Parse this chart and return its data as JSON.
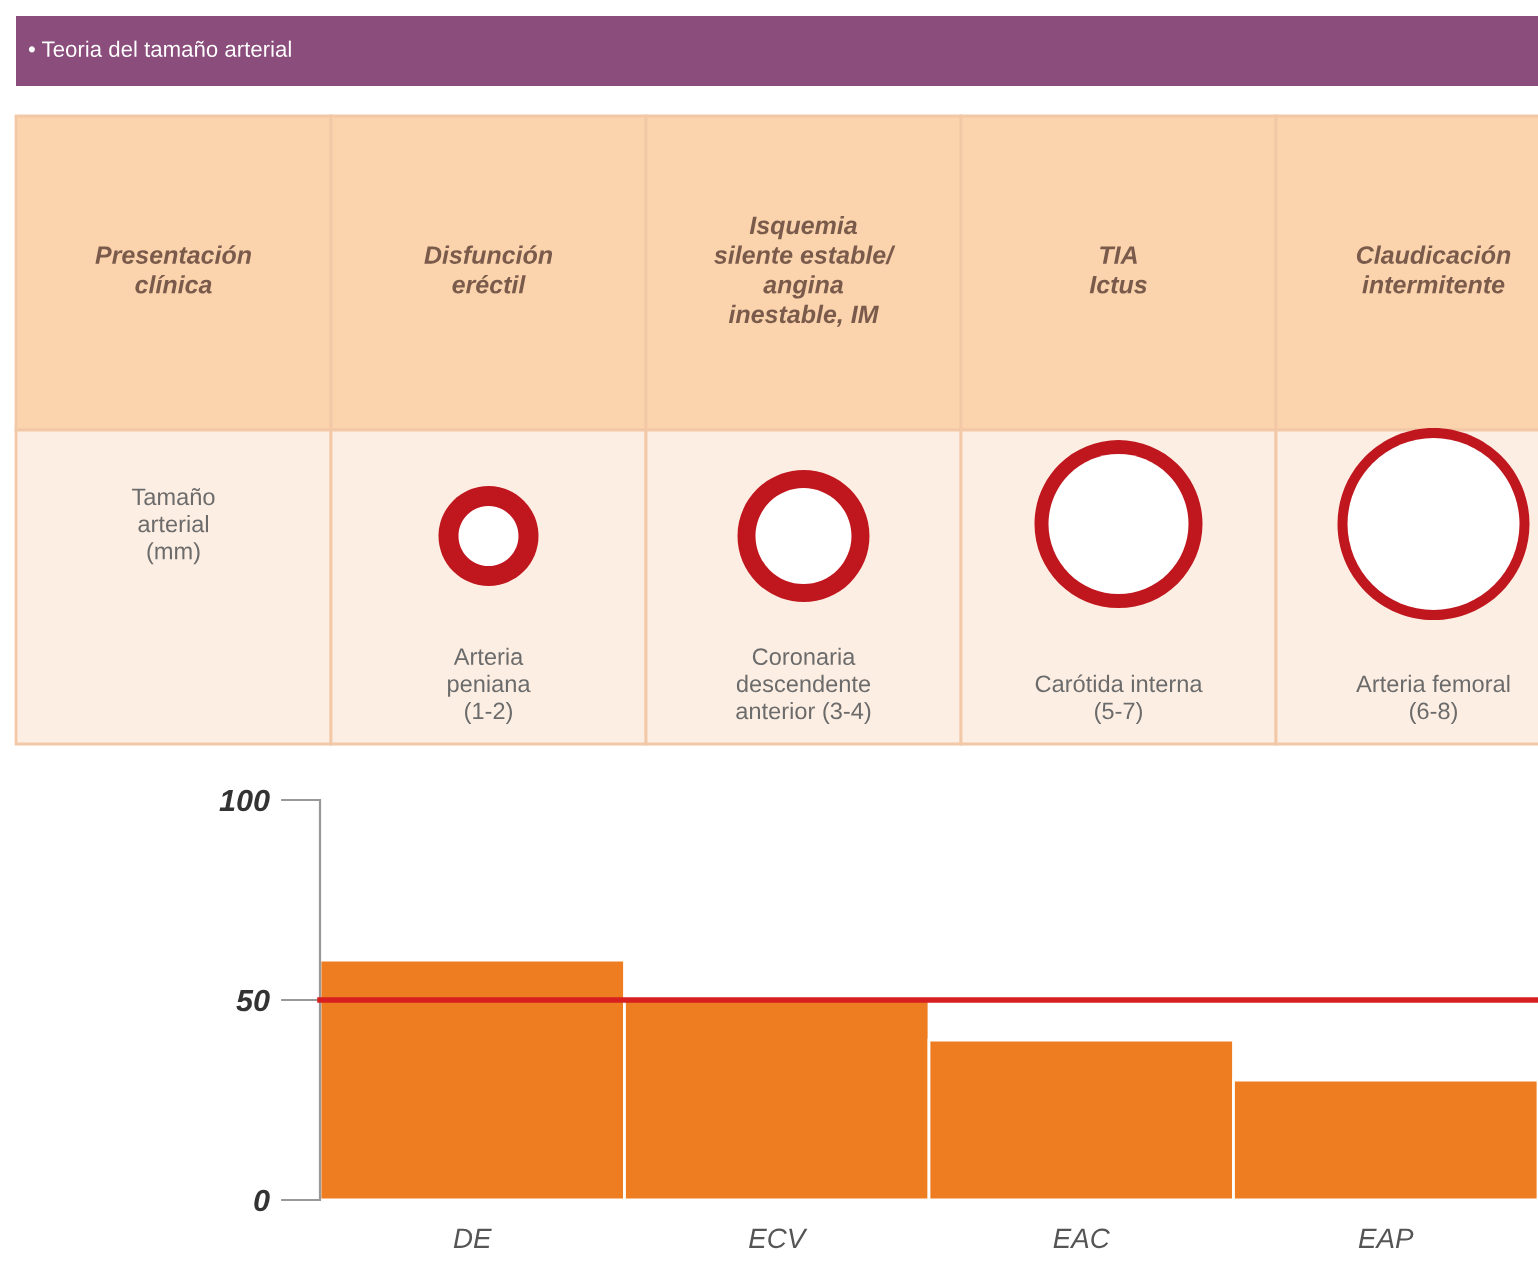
{
  "chart_data": [
    {
      "type": "other",
      "title": "• Teoria del tamaño arterial",
      "annotations": [
        "Presentación\nclínica",
        "Disfunción\neréctil",
        "Isquemia\nsilente estable/\nangina\ninestable, IM",
        "TIA\nIctus",
        "Claudicación\nintermitente",
        "Tamaño\narterial\n(mm)",
        "Arteria\npeniana\n(1-2)",
        "Coronaria\ndescendente\nanterior (3-4)",
        "Carótida interna\n(5-7)",
        "Arteria femoral\n(6-8)"
      ]
    },
    {
      "type": "bar",
      "categories": [
        "DE",
        "ECV",
        "EAC",
        "EAP"
      ],
      "values": [
        60,
        50,
        40,
        30
      ],
      "color": "#ee7d22",
      "ylim": [
        0,
        100
      ],
      "yticks": [
        0,
        50,
        100
      ],
      "grid": false,
      "ref_lines": [
        {
          "axis": "y",
          "value": 50,
          "color": "#d71f1f"
        }
      ]
    }
  ]
}
